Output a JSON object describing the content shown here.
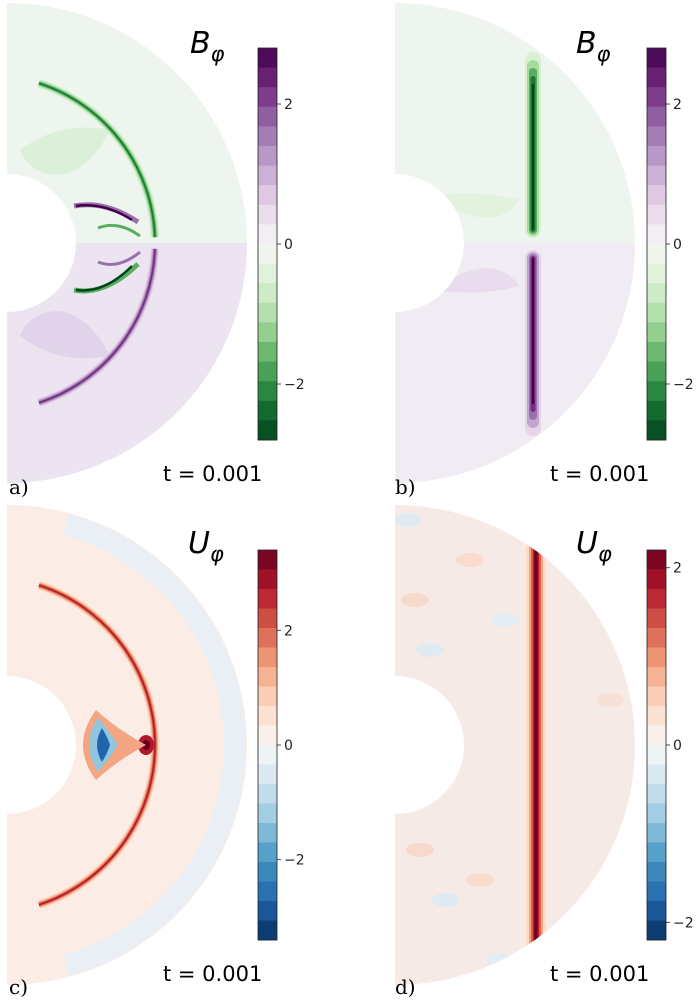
{
  "chart_data": [
    {
      "type": "heatmap",
      "panel_label": "a)",
      "title_symbol": "B",
      "title_subscript": "φ",
      "time_label": "t = 0.001",
      "colormap": "PRGn (green negative, purple positive)",
      "colorbar": {
        "ticks": [
          2,
          0,
          -2
        ],
        "tick_labels": [
          "2",
          "0",
          "−2"
        ],
        "range": [
          -2.8,
          2.8
        ],
        "levels": 20
      },
      "geometry": "meridional half-annulus; inner radius ≈ 0.35 of outer",
      "features": "two bow-shaped bands (fronts) of opposite sign above and below the equator, with strong sign-reversed arcs near the inner boundary"
    },
    {
      "type": "heatmap",
      "panel_label": "b)",
      "title_symbol": "B",
      "title_subscript": "φ",
      "time_label": "t = 0.001",
      "colormap": "PRGn (green negative, purple positive)",
      "colorbar": {
        "ticks": [
          2,
          0,
          -2
        ],
        "tick_labels": [
          "2",
          "0",
          "−2"
        ],
        "range": [
          -2.8,
          2.8
        ],
        "levels": 20
      },
      "geometry": "meridional half-annulus; inner radius ≈ 0.35 of outer",
      "features": "narrow vertical band: negative (green) in the northern half, positive (purple) in the southern half"
    },
    {
      "type": "heatmap",
      "panel_label": "c)",
      "title_symbol": "U",
      "title_subscript": "φ",
      "time_label": "t = 0.001",
      "colormap": "RdBu_r (blue negative, red positive)",
      "colorbar": {
        "ticks": [
          2,
          0,
          -2
        ],
        "tick_labels": [
          "2",
          "0",
          "−2"
        ],
        "range": [
          -3.4,
          3.4
        ],
        "levels": 20
      },
      "geometry": "meridional half-annulus; inner radius ≈ 0.35 of outer",
      "features": "symmetric bow-shaped positive fronts meeting at a peak on the equator, blue crescent near the inner boundary"
    },
    {
      "type": "heatmap",
      "panel_label": "d)",
      "title_symbol": "U",
      "title_subscript": "φ",
      "time_label": "t = 0.001",
      "colormap": "RdBu_r (blue negative, red positive)",
      "colorbar": {
        "ticks": [
          2,
          0,
          -2
        ],
        "tick_labels": [
          "2",
          "0",
          "−2"
        ],
        "range": [
          -2.2,
          2.2
        ],
        "levels": 20
      },
      "geometry": "meridional half-annulus; inner radius ≈ 0.35 of outer",
      "features": "narrow vertical positive band spanning the domain with weak noisy fluctuations elsewhere"
    }
  ]
}
